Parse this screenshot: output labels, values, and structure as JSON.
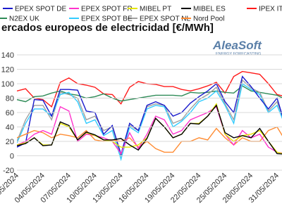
{
  "chart_data": {
    "type": "line",
    "title": "ercados europeos de electricidad [€/MWh]",
    "logo": {
      "name": "AleaSoft",
      "tagline": "ENERGY FORECASTING"
    },
    "x": [
      "01/05/2024",
      "02/05/2024",
      "03/05/2024",
      "04/05/2024",
      "05/05/2024",
      "06/05/2024",
      "07/05/2024",
      "08/05/2024",
      "09/05/2024",
      "10/05/2024",
      "11/05/2024",
      "12/05/2024",
      "13/05/2024",
      "14/05/2024",
      "15/05/2024",
      "16/05/2024",
      "17/05/2024",
      "18/05/2024",
      "19/05/2024",
      "20/05/2024",
      "21/05/2024",
      "22/05/2024",
      "23/05/2024",
      "24/05/2024",
      "25/05/2024",
      "26/05/2024",
      "27/05/2024",
      "28/05/2024",
      "29/05/2024",
      "30/05/2024",
      "31/05/2024",
      "01/06/2024"
    ],
    "xticks": [
      {
        "value": "01/05/2024",
        "label": "05/2024"
      },
      {
        "value": "04/05/2024",
        "label": "04/05/2024"
      },
      {
        "value": "07/05/2024",
        "label": "07/05/2024"
      },
      {
        "value": "10/05/2024",
        "label": "10/05/2024"
      },
      {
        "value": "13/05/2024",
        "label": "13/05/2024"
      },
      {
        "value": "16/05/2024",
        "label": "16/05/2024"
      },
      {
        "value": "19/05/2024",
        "label": "19/05/2024"
      },
      {
        "value": "22/05/2024",
        "label": "22/05/2024"
      },
      {
        "value": "25/05/2024",
        "label": "25/05/2024"
      },
      {
        "value": "28/05/2024",
        "label": "28/05/2024"
      },
      {
        "value": "31/05/2024",
        "label": "31/05/2024"
      }
    ],
    "ylim": [
      -20,
      140
    ],
    "yticks": [
      -20,
      0,
      20,
      40,
      60,
      80,
      100,
      120,
      140
    ],
    "grid": true,
    "series": [
      {
        "name": "IPEX IT",
        "color": "#ff1a1a",
        "values": [
          90,
          93,
          80,
          78,
          68,
          102,
          108,
          100,
          98,
          95,
          86,
          85,
          72,
          95,
          103,
          100,
          99,
          96,
          96,
          92,
          90,
          93,
          97,
          102,
          87,
          110,
          117,
          115,
          113,
          100,
          85,
          82
        ]
      },
      {
        "name": "N2EX UK",
        "color": "#2e8b57",
        "values": [
          78,
          75,
          82,
          83,
          87,
          90,
          86,
          84,
          80,
          82,
          86,
          80,
          76,
          78,
          80,
          82,
          84,
          84,
          84,
          83,
          88,
          87,
          88,
          90,
          88,
          87,
          97,
          90,
          88,
          86,
          84,
          78
        ]
      },
      {
        "name": "EPEX SPOT NL",
        "color": "#a0a0a0",
        "values": [
          20,
          50,
          70,
          70,
          50,
          88,
          85,
          80,
          50,
          55,
          35,
          40,
          0,
          42,
          35,
          68,
          72,
          70,
          45,
          50,
          65,
          78,
          85,
          95,
          72,
          50,
          105,
          94,
          88,
          62,
          75,
          42
        ]
      },
      {
        "name": "EPEX SPOT BE",
        "color": "#33ccff",
        "values": [
          18,
          45,
          65,
          65,
          55,
          85,
          88,
          75,
          45,
          50,
          28,
          35,
          -5,
          40,
          32,
          65,
          70,
          68,
          40,
          48,
          60,
          75,
          80,
          90,
          70,
          45,
          100,
          92,
          85,
          60,
          70,
          40
        ]
      },
      {
        "name": "EPEX SPOT DE",
        "color": "#1a1acc",
        "values": [
          12,
          18,
          78,
          77,
          55,
          92,
          92,
          91,
          62,
          60,
          30,
          42,
          2,
          45,
          35,
          70,
          75,
          70,
          55,
          60,
          73,
          82,
          90,
          100,
          75,
          60,
          110,
          96,
          80,
          65,
          80,
          40
        ]
      },
      {
        "name": "Nord Pool",
        "color": "#ff8c33",
        "values": [
          25,
          30,
          35,
          32,
          25,
          30,
          28,
          25,
          35,
          22,
          20,
          22,
          20,
          25,
          12,
          20,
          10,
          5,
          5,
          20,
          20,
          25,
          22,
          38,
          25,
          15,
          25,
          20,
          20,
          35,
          40,
          20
        ]
      },
      {
        "name": "EPEX SPOT FR",
        "color": "#ff33cc",
        "values": [
          15,
          20,
          30,
          35,
          30,
          68,
          62,
          20,
          30,
          28,
          25,
          20,
          3,
          32,
          10,
          30,
          55,
          50,
          30,
          35,
          50,
          55,
          60,
          68,
          30,
          15,
          35,
          25,
          30,
          12,
          5,
          3
        ]
      },
      {
        "name": "MIBEL PT",
        "color": "#e6e600",
        "values": [
          15,
          18,
          25,
          15,
          15,
          45,
          40,
          22,
          32,
          28,
          22,
          20,
          12,
          12,
          15,
          25,
          52,
          40,
          25,
          30,
          45,
          45,
          55,
          72,
          30,
          20,
          28,
          30,
          35,
          20,
          5,
          2
        ]
      },
      {
        "name": "MIBEL ES",
        "color": "#000000",
        "values": [
          14,
          17,
          25,
          14,
          15,
          47,
          42,
          22,
          33,
          29,
          22,
          22,
          24,
          15,
          8,
          24,
          52,
          40,
          25,
          30,
          45,
          44,
          55,
          70,
          32,
          25,
          28,
          25,
          38,
          20,
          3,
          2
        ]
      }
    ]
  }
}
